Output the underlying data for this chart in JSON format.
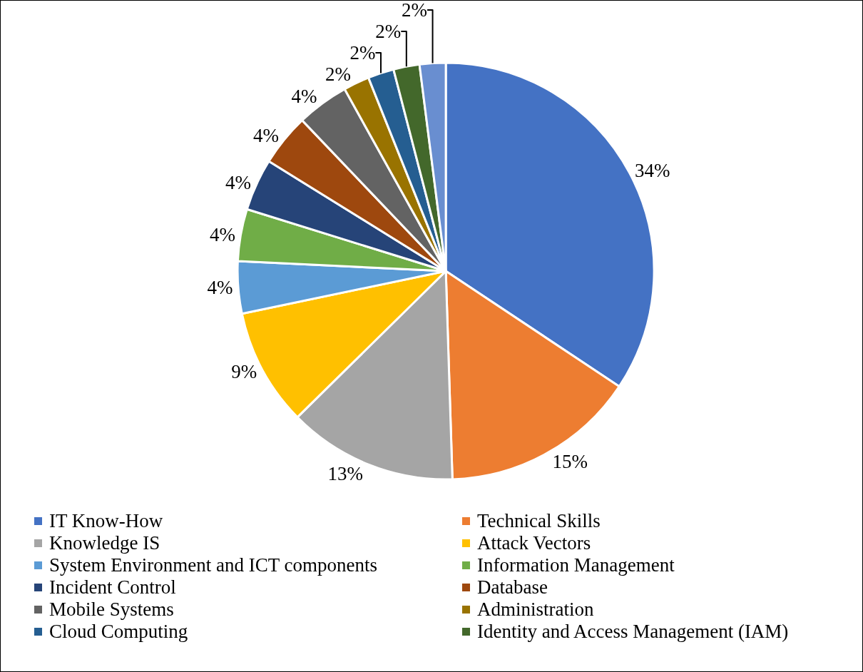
{
  "chart_data": {
    "type": "pie",
    "legend": "bottom",
    "categories": [
      "IT Know-How",
      "Technical Skills",
      "Knowledge IS",
      "Attack Vectors",
      "System Environment and ICT components",
      "Information Management",
      "Incident Control",
      "Database",
      "Mobile Systems",
      "Administration",
      "Cloud Computing",
      "Identity and Access Management (IAM)",
      null
    ],
    "values": [
      34,
      15,
      13,
      9,
      4,
      4,
      4,
      4,
      4,
      2,
      2,
      2,
      2
    ],
    "value_labels": [
      "34%",
      "15%",
      "13%",
      "9%",
      "4%",
      "4%",
      "4%",
      "4%",
      "4%",
      "2%",
      "2%",
      "2%",
      "2%"
    ],
    "colors": [
      "#4472c4",
      "#ed7d31",
      "#a5a5a5",
      "#ffc000",
      "#5b9bd5",
      "#70ad47",
      "#264478",
      "#9e480e",
      "#636363",
      "#997300",
      "#255e91",
      "#43682b",
      "#698ed0"
    ]
  }
}
